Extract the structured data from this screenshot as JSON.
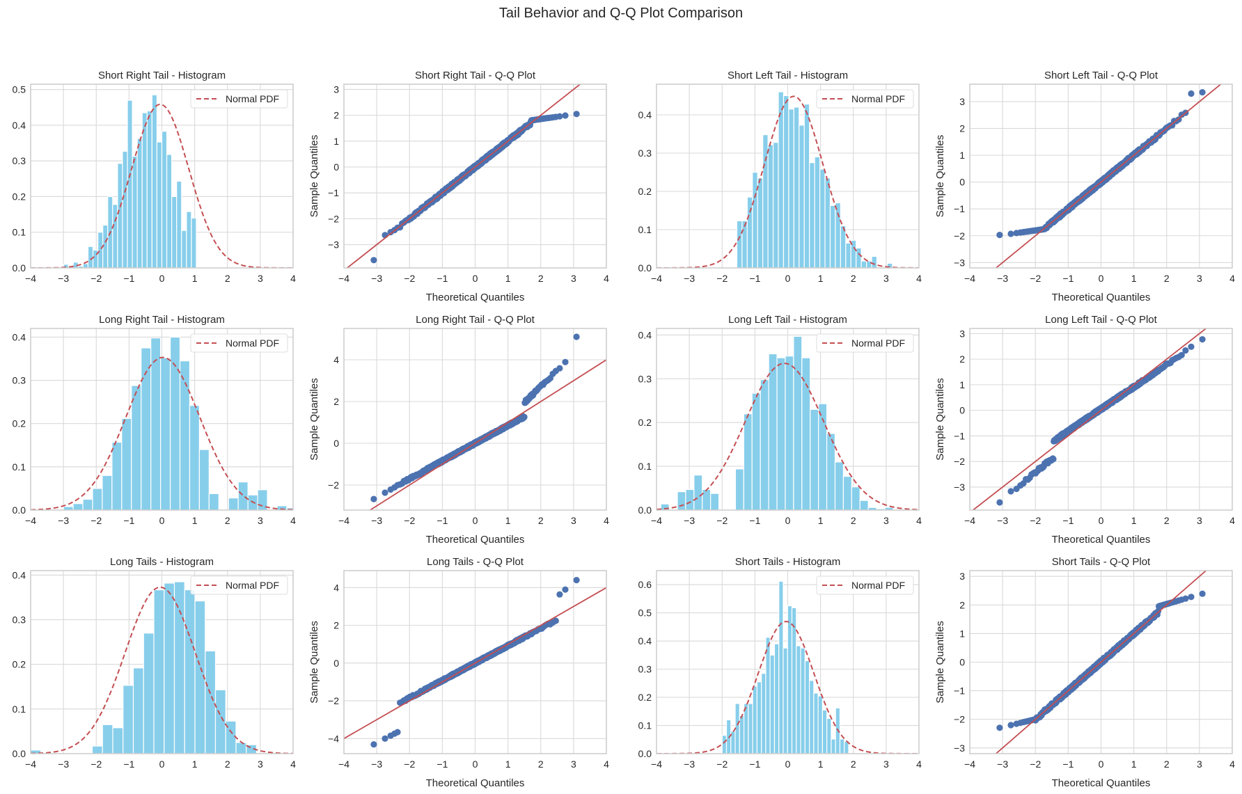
{
  "chart_data": {
    "title": "Tail Behavior and Q-Q Plot Comparison",
    "colors": {
      "bar": "#87ceeb",
      "pdf": "#c44e52",
      "points": "#4c72b0",
      "line": "#c44e52",
      "grid": "#d9d9d9",
      "spine": "#cccccc"
    },
    "panels": [
      {
        "type": "bar",
        "kind": "hist",
        "title": "Short Right Tail - Histogram",
        "xlim": [
          -4,
          4
        ],
        "ylim": [
          0,
          0.515
        ],
        "xticks": [
          -4,
          -3,
          -2,
          -1,
          0,
          1,
          2,
          3,
          4
        ],
        "yticks": [
          0.0,
          0.1,
          0.2,
          0.3,
          0.4,
          0.5
        ],
        "ytick_labels": [
          "0.0",
          "0.1",
          "0.2",
          "0.3",
          "0.4",
          "0.5"
        ],
        "legend": "Normal PDF",
        "legend_loc": "upper right",
        "bin_start": -3.0,
        "bin_width": 0.15,
        "values": [
          0.01,
          0.005,
          0.016,
          0.005,
          0.012,
          0.06,
          0.05,
          0.1,
          0.12,
          0.2,
          0.178,
          0.293,
          0.327,
          0.47,
          0.313,
          0.363,
          0.435,
          0.44,
          0.485,
          0.353,
          0.383,
          0.318,
          0.2,
          0.243,
          0.105,
          0.158,
          0.14
        ],
        "pdf": {
          "mean": -0.05,
          "std": 0.87
        }
      },
      {
        "type": "scatter",
        "kind": "qq",
        "title": "Short Right Tail - Q-Q Plot",
        "xlabel": "Theoretical Quantiles",
        "ylabel": "Sample Quantiles",
        "xlim": [
          -4,
          4
        ],
        "ylim": [
          -3.9,
          3.2
        ],
        "xticks": [
          -4,
          -3,
          -2,
          -1,
          0,
          1,
          2,
          3,
          4
        ],
        "yticks": [
          -3,
          -2,
          -1,
          0,
          1,
          2,
          3
        ],
        "line": {
          "slope": 1.0,
          "intercept": 0.0
        },
        "shape": "short-right",
        "cap_hi": 2.05,
        "low_outlier": -3.6
      },
      {
        "type": "bar",
        "kind": "hist",
        "title": "Short Left Tail - Histogram",
        "xlim": [
          -4,
          4
        ],
        "ylim": [
          0,
          0.48
        ],
        "xticks": [
          -4,
          -3,
          -2,
          -1,
          0,
          1,
          2,
          3,
          4
        ],
        "yticks": [
          0.0,
          0.1,
          0.2,
          0.3,
          0.4
        ],
        "ytick_labels": [
          "0.0",
          "0.1",
          "0.2",
          "0.3",
          "0.4"
        ],
        "legend": "Normal PDF",
        "legend_loc": "upper right",
        "bin_start": -1.55,
        "bin_width": 0.158,
        "values": [
          0.123,
          0.123,
          0.185,
          0.25,
          0.235,
          0.348,
          0.322,
          0.328,
          0.46,
          0.45,
          0.415,
          0.42,
          0.373,
          0.428,
          0.275,
          0.29,
          0.258,
          0.235,
          0.163,
          0.17,
          0.11,
          0.065,
          0.072,
          0.052,
          0.018,
          0.018,
          0.03,
          0.0,
          0.0,
          0.012
        ],
        "pdf": {
          "mean": 0.18,
          "std": 0.89
        }
      },
      {
        "type": "scatter",
        "kind": "qq",
        "title": "Short Left Tail - Q-Q Plot",
        "xlabel": "Theoretical Quantiles",
        "ylabel": "Sample Quantiles",
        "xlim": [
          -4,
          4
        ],
        "ylim": [
          -3.2,
          3.65
        ],
        "xticks": [
          -4,
          -3,
          -2,
          -1,
          0,
          1,
          2,
          3,
          4
        ],
        "yticks": [
          -3,
          -2,
          -1,
          0,
          1,
          2,
          3
        ],
        "line": {
          "slope": 1.0,
          "intercept": 0.0
        },
        "shape": "short-left",
        "cap_lo": -1.97,
        "high_outliers": [
          [
            2.85,
            3.3
          ],
          [
            3.08,
            3.35
          ]
        ]
      },
      {
        "type": "bar",
        "kind": "hist",
        "title": "Long Right Tail - Histogram",
        "xlim": [
          -4,
          4
        ],
        "ylim": [
          0,
          0.42
        ],
        "xticks": [
          -4,
          -3,
          -2,
          -1,
          0,
          1,
          2,
          3,
          4
        ],
        "yticks": [
          0.0,
          0.1,
          0.2,
          0.3,
          0.4
        ],
        "ytick_labels": [
          "0.0",
          "0.1",
          "0.2",
          "0.3",
          "0.4"
        ],
        "legend": "Normal PDF",
        "legend_loc": "upper right",
        "bin_start": -3.0,
        "bin_width": 0.296,
        "values": [
          0.008,
          0.015,
          0.025,
          0.05,
          0.08,
          0.157,
          0.212,
          0.288,
          0.375,
          0.398,
          0.352,
          0.4,
          0.345,
          0.242,
          0.14,
          0.038,
          0.0,
          0.028,
          0.065,
          0.035,
          0.047,
          0.0,
          0.01,
          0.005
        ],
        "pdf": {
          "mean": 0.03,
          "std": 1.13
        }
      },
      {
        "type": "scatter",
        "kind": "qq",
        "title": "Long Right Tail - Q-Q Plot",
        "xlabel": "Theoretical Quantiles",
        "ylabel": "Sample Quantiles",
        "xlim": [
          -4,
          4
        ],
        "ylim": [
          -3.2,
          5.5
        ],
        "xticks": [
          -4,
          -3,
          -2,
          -1,
          0,
          1,
          2,
          3,
          4
        ],
        "yticks": [
          -2,
          0,
          2,
          4
        ],
        "line": {
          "slope": 1.0,
          "intercept": 0.0
        },
        "shape": "long-right",
        "jump_at": 1.5,
        "top_outlier": 5.1
      },
      {
        "type": "bar",
        "kind": "hist",
        "title": "Long Left Tail - Histogram",
        "xlim": [
          -4,
          4
        ],
        "ylim": [
          0,
          0.415
        ],
        "xticks": [
          -4,
          -3,
          -2,
          -1,
          0,
          1,
          2,
          3,
          4
        ],
        "yticks": [
          0.0,
          0.1,
          0.2,
          0.3,
          0.4
        ],
        "ytick_labels": [
          "0.0",
          "0.1",
          "0.2",
          "0.3",
          "0.4"
        ],
        "legend": "Normal PDF",
        "legend_loc": "upper right",
        "bin_start": -3.87,
        "bin_width": 0.253,
        "values": [
          0.014,
          0.0,
          0.042,
          0.047,
          0.08,
          0.047,
          0.038,
          0.0,
          0.0,
          0.094,
          0.22,
          0.267,
          0.298,
          0.357,
          0.348,
          0.352,
          0.397,
          0.348,
          0.23,
          0.243,
          0.175,
          0.11,
          0.077,
          0.053,
          0.022,
          0.006,
          0.003,
          0.006
        ],
        "pdf": {
          "mean": -0.1,
          "std": 1.19
        }
      },
      {
        "type": "scatter",
        "kind": "qq",
        "title": "Long Left Tail - Q-Q Plot",
        "xlabel": "Theoretical Quantiles",
        "ylabel": "Sample Quantiles",
        "xlim": [
          -4,
          4
        ],
        "ylim": [
          -3.9,
          3.2
        ],
        "xticks": [
          -4,
          -3,
          -2,
          -1,
          0,
          1,
          2,
          3,
          4
        ],
        "yticks": [
          -3,
          -2,
          -1,
          0,
          1,
          2,
          3
        ],
        "line": {
          "slope": 1.0,
          "intercept": 0.0
        },
        "shape": "long-left",
        "jump_at": -1.45,
        "low_outlier": -3.6
      },
      {
        "type": "bar",
        "kind": "hist",
        "title": "Long Tails - Histogram",
        "xlim": [
          -4,
          4
        ],
        "ylim": [
          0,
          0.41
        ],
        "xticks": [
          -4,
          -3,
          -2,
          -1,
          0,
          1,
          2,
          3,
          4
        ],
        "yticks": [
          0.0,
          0.1,
          0.2,
          0.3,
          0.4
        ],
        "ytick_labels": [
          "0.0",
          "0.1",
          "0.2",
          "0.3",
          "0.4"
        ],
        "legend": "Normal PDF",
        "legend_loc": "upper right",
        "bin_start": -4.0,
        "bin_width": 0.313,
        "values": [
          0.008,
          0.0,
          0.0,
          0.0,
          0.0,
          0.0,
          0.017,
          0.065,
          0.058,
          0.153,
          0.192,
          0.27,
          0.367,
          0.382,
          0.385,
          0.367,
          0.342,
          0.23,
          0.143,
          0.073,
          0.025,
          0.02
        ],
        "pdf": {
          "mean": -0.05,
          "std": 1.07
        }
      },
      {
        "type": "scatter",
        "kind": "qq",
        "title": "Long Tails - Q-Q Plot",
        "xlabel": "Theoretical Quantiles",
        "ylabel": "Sample Quantiles",
        "xlim": [
          -4,
          4
        ],
        "ylim": [
          -4.8,
          4.9
        ],
        "xticks": [
          -4,
          -3,
          -2,
          -1,
          0,
          1,
          2,
          3,
          4
        ],
        "yticks": [
          -4,
          -2,
          0,
          2,
          4
        ],
        "line": {
          "slope": 1.0,
          "intercept": 0.0
        },
        "shape": "long-both"
      },
      {
        "type": "bar",
        "kind": "hist",
        "title": "Short Tails - Histogram",
        "xlim": [
          -4,
          4
        ],
        "ylim": [
          0,
          0.65
        ],
        "xticks": [
          -4,
          -3,
          -2,
          -1,
          0,
          1,
          2,
          3,
          4
        ],
        "yticks": [
          0.0,
          0.1,
          0.2,
          0.3,
          0.4,
          0.5,
          0.6
        ],
        "ytick_labels": [
          "0.0",
          "0.1",
          "0.2",
          "0.3",
          "0.4",
          "0.5",
          "0.6"
        ],
        "legend": "Normal PDF",
        "legend_loc": "upper right",
        "bin_start": -2.0,
        "bin_width": 0.133,
        "values": [
          0.065,
          0.12,
          0.08,
          0.178,
          0.135,
          0.178,
          0.178,
          0.24,
          0.255,
          0.285,
          0.413,
          0.35,
          0.39,
          0.612,
          0.375,
          0.525,
          0.518,
          0.383,
          0.375,
          0.33,
          0.26,
          0.215,
          0.205,
          0.155,
          0.125,
          0.052,
          0.162,
          0.052,
          0.043,
          0.0
        ],
        "pdf": {
          "mean": -0.05,
          "std": 0.85
        }
      },
      {
        "type": "scatter",
        "kind": "qq",
        "title": "Short Tails - Q-Q Plot",
        "xlabel": "Theoretical Quantiles",
        "ylabel": "Sample Quantiles",
        "xlim": [
          -4,
          4
        ],
        "ylim": [
          -3.2,
          3.2
        ],
        "xticks": [
          -4,
          -3,
          -2,
          -1,
          0,
          1,
          2,
          3,
          4
        ],
        "yticks": [
          -3,
          -2,
          -1,
          0,
          1,
          2,
          3
        ],
        "line": {
          "slope": 1.0,
          "intercept": 0.0
        },
        "shape": "short-both",
        "cap_lo": -2.3,
        "cap_hi": 2.42
      }
    ]
  }
}
